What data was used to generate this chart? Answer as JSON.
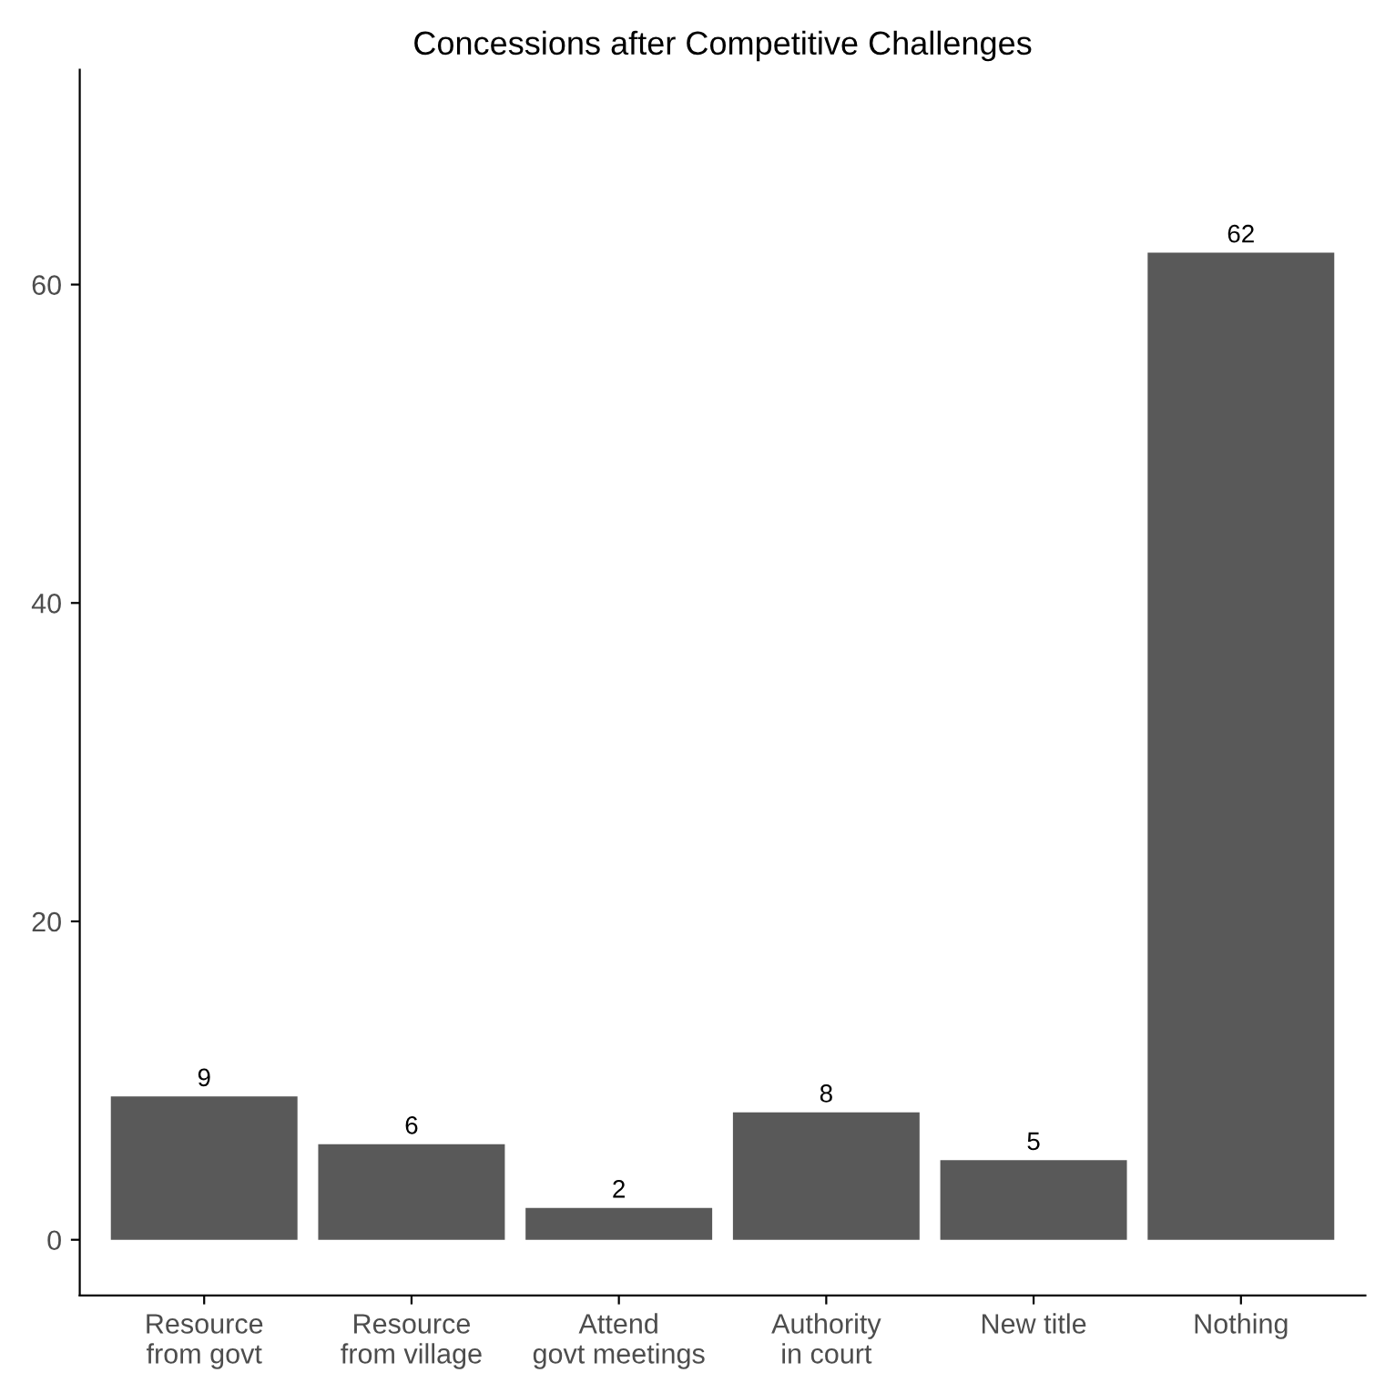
{
  "chart_data": {
    "type": "bar",
    "title": "Concessions after Competitive Challenges",
    "categories": [
      "Resource\nfrom govt",
      "Resource\nfrom village",
      "Attend\ngovt meetings",
      "Authority\nin court",
      "New title",
      "Nothing"
    ],
    "values": [
      9,
      6,
      2,
      8,
      5,
      62
    ],
    "color": "#595959",
    "ylim": [
      -3.5,
      73.5
    ],
    "yticks": [
      0,
      20,
      40,
      60
    ],
    "data_labels": true,
    "grid": false
  }
}
